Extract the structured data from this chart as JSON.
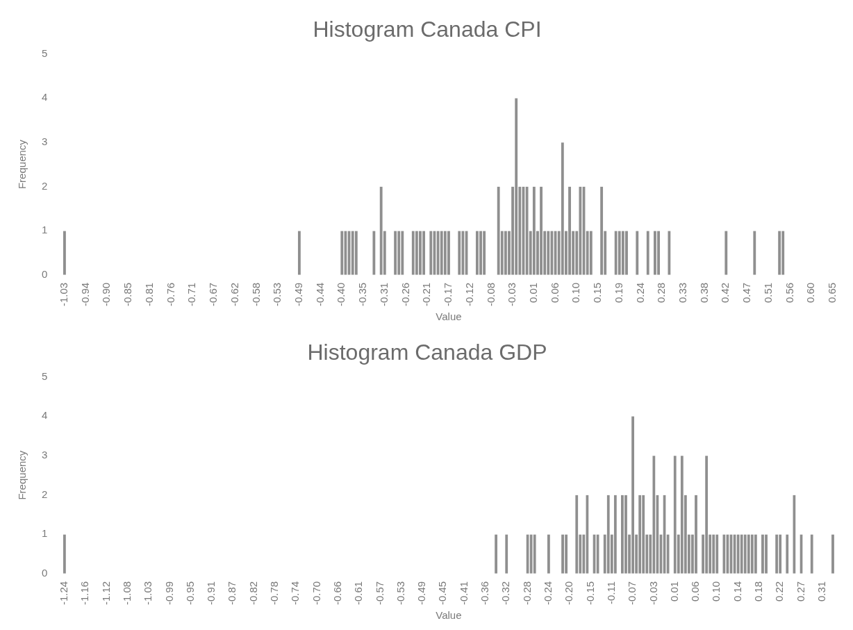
{
  "chart_data": [
    {
      "type": "bar",
      "title": "Histogram Canada CPI",
      "xlabel": "Value",
      "ylabel": "Frequency",
      "color": "#8f8f8f",
      "ylim": [
        0,
        5
      ],
      "yticks": [
        0,
        1,
        2,
        3,
        4,
        5
      ],
      "grid": false,
      "legend": false,
      "categories": [
        "-1.03",
        null,
        null,
        null,
        null,
        null,
        "-0.94",
        null,
        null,
        null,
        null,
        null,
        "-0.90",
        null,
        null,
        null,
        null,
        null,
        "-0.85",
        null,
        null,
        null,
        null,
        null,
        "-0.81",
        null,
        null,
        null,
        null,
        null,
        "-0.76",
        null,
        null,
        null,
        null,
        null,
        "-0.71",
        null,
        null,
        null,
        null,
        null,
        "-0.67",
        null,
        null,
        null,
        null,
        null,
        "-0.62",
        null,
        null,
        null,
        null,
        null,
        "-0.58",
        null,
        null,
        null,
        null,
        null,
        "-0.53",
        null,
        null,
        null,
        null,
        null,
        "-0.49",
        null,
        null,
        null,
        null,
        null,
        "-0.44",
        null,
        null,
        null,
        null,
        null,
        "-0.40",
        null,
        null,
        null,
        null,
        null,
        "-0.35",
        null,
        null,
        null,
        null,
        null,
        "-0.31",
        null,
        null,
        null,
        null,
        null,
        "-0.26",
        null,
        null,
        null,
        null,
        null,
        "-0.21",
        null,
        null,
        null,
        null,
        null,
        "-0.17",
        null,
        null,
        null,
        null,
        null,
        "-0.12",
        null,
        null,
        null,
        null,
        null,
        "-0.08",
        null,
        null,
        null,
        null,
        null,
        "-0.03",
        null,
        null,
        null,
        null,
        null,
        "0.01",
        null,
        null,
        null,
        null,
        null,
        "0.06",
        null,
        null,
        null,
        null,
        null,
        "0.10",
        null,
        null,
        null,
        null,
        null,
        "0.15",
        null,
        null,
        null,
        null,
        null,
        "0.19",
        null,
        null,
        null,
        null,
        null,
        "0.24",
        null,
        null,
        null,
        null,
        null,
        "0.28",
        null,
        null,
        null,
        null,
        null,
        "0.33",
        null,
        null,
        null,
        null,
        null,
        "0.38",
        null,
        null,
        null,
        null,
        null,
        "0.42",
        null,
        null,
        null,
        null,
        null,
        "0.47",
        null,
        null,
        null,
        null,
        null,
        "0.51",
        null,
        null,
        null,
        null,
        null,
        "0.56",
        null,
        null,
        null,
        null,
        null,
        "0.60",
        null,
        null,
        null,
        null,
        null,
        "0.65"
      ],
      "values": [
        1,
        0,
        0,
        0,
        0,
        0,
        0,
        0,
        0,
        0,
        0,
        0,
        0,
        0,
        0,
        0,
        0,
        0,
        0,
        0,
        0,
        0,
        0,
        0,
        0,
        0,
        0,
        0,
        0,
        0,
        0,
        0,
        0,
        0,
        0,
        0,
        0,
        0,
        0,
        0,
        0,
        0,
        0,
        0,
        0,
        0,
        0,
        0,
        0,
        0,
        0,
        0,
        0,
        0,
        0,
        0,
        0,
        0,
        0,
        0,
        0,
        0,
        0,
        0,
        0,
        0,
        1,
        0,
        0,
        0,
        0,
        0,
        0,
        0,
        0,
        0,
        0,
        0,
        1,
        1,
        1,
        1,
        1,
        0,
        0,
        0,
        0,
        1,
        0,
        2,
        1,
        0,
        0,
        1,
        1,
        1,
        0,
        0,
        1,
        1,
        1,
        1,
        0,
        1,
        1,
        1,
        1,
        1,
        1,
        0,
        0,
        1,
        1,
        1,
        0,
        0,
        1,
        1,
        1,
        0,
        0,
        0,
        2,
        1,
        1,
        1,
        2,
        4,
        2,
        2,
        2,
        1,
        2,
        1,
        2,
        1,
        1,
        1,
        1,
        1,
        3,
        1,
        2,
        1,
        1,
        2,
        2,
        1,
        1,
        0,
        0,
        2,
        1,
        0,
        0,
        1,
        1,
        1,
        1,
        0,
        0,
        1,
        0,
        0,
        1,
        0,
        1,
        1,
        0,
        0,
        1,
        0,
        0,
        0,
        0,
        0,
        0,
        0,
        0,
        0,
        0,
        0,
        0,
        0,
        0,
        0,
        1,
        0,
        0,
        0,
        0,
        0,
        0,
        0,
        1,
        0,
        0,
        0,
        0,
        0,
        0,
        1,
        1,
        0,
        0,
        0,
        0,
        0,
        0,
        0,
        0,
        0,
        0,
        0,
        0,
        0,
        0
      ]
    },
    {
      "type": "bar",
      "title": "Histogram Canada GDP",
      "xlabel": "Value",
      "ylabel": "Frequency",
      "color": "#8f8f8f",
      "ylim": [
        0,
        5
      ],
      "yticks": [
        0,
        1,
        2,
        3,
        4,
        5
      ],
      "grid": false,
      "legend": false,
      "categories": [
        "-1.24",
        null,
        null,
        null,
        null,
        null,
        "-1.16",
        null,
        null,
        null,
        null,
        null,
        "-1.12",
        null,
        null,
        null,
        null,
        null,
        "-1.08",
        null,
        null,
        null,
        null,
        null,
        "-1.03",
        null,
        null,
        null,
        null,
        null,
        "-0.99",
        null,
        null,
        null,
        null,
        null,
        "-0.95",
        null,
        null,
        null,
        null,
        null,
        "-0.91",
        null,
        null,
        null,
        null,
        null,
        "-0.87",
        null,
        null,
        null,
        null,
        null,
        "-0.82",
        null,
        null,
        null,
        null,
        null,
        "-0.78",
        null,
        null,
        null,
        null,
        null,
        "-0.74",
        null,
        null,
        null,
        null,
        null,
        "-0.70",
        null,
        null,
        null,
        null,
        null,
        "-0.66",
        null,
        null,
        null,
        null,
        null,
        "-0.61",
        null,
        null,
        null,
        null,
        null,
        "-0.57",
        null,
        null,
        null,
        null,
        null,
        "-0.53",
        null,
        null,
        null,
        null,
        null,
        "-0.49",
        null,
        null,
        null,
        null,
        null,
        "-0.45",
        null,
        null,
        null,
        null,
        null,
        "-0.41",
        null,
        null,
        null,
        null,
        null,
        "-0.36",
        null,
        null,
        null,
        null,
        null,
        "-0.32",
        null,
        null,
        null,
        null,
        null,
        "-0.28",
        null,
        null,
        null,
        null,
        null,
        "-0.24",
        null,
        null,
        null,
        null,
        null,
        "-0.20",
        null,
        null,
        null,
        null,
        null,
        "-0.15",
        null,
        null,
        null,
        null,
        null,
        "-0.11",
        null,
        null,
        null,
        null,
        null,
        "-0.07",
        null,
        null,
        null,
        null,
        null,
        "-0.03",
        null,
        null,
        null,
        null,
        null,
        "0.01",
        null,
        null,
        null,
        null,
        null,
        "0.06",
        null,
        null,
        null,
        null,
        null,
        "0.10",
        null,
        null,
        null,
        null,
        null,
        "0.14",
        null,
        null,
        null,
        null,
        null,
        "0.18",
        null,
        null,
        null,
        null,
        null,
        "0.22",
        null,
        null,
        null,
        null,
        null,
        "0.27",
        null,
        null,
        null,
        null,
        null,
        "0.31",
        null,
        null,
        null
      ],
      "values": [
        1,
        0,
        0,
        0,
        0,
        0,
        0,
        0,
        0,
        0,
        0,
        0,
        0,
        0,
        0,
        0,
        0,
        0,
        0,
        0,
        0,
        0,
        0,
        0,
        0,
        0,
        0,
        0,
        0,
        0,
        0,
        0,
        0,
        0,
        0,
        0,
        0,
        0,
        0,
        0,
        0,
        0,
        0,
        0,
        0,
        0,
        0,
        0,
        0,
        0,
        0,
        0,
        0,
        0,
        0,
        0,
        0,
        0,
        0,
        0,
        0,
        0,
        0,
        0,
        0,
        0,
        0,
        0,
        0,
        0,
        0,
        0,
        0,
        0,
        0,
        0,
        0,
        0,
        0,
        0,
        0,
        0,
        0,
        0,
        0,
        0,
        0,
        0,
        0,
        0,
        0,
        0,
        0,
        0,
        0,
        0,
        0,
        0,
        0,
        0,
        0,
        0,
        0,
        0,
        0,
        0,
        0,
        0,
        0,
        0,
        0,
        0,
        0,
        0,
        0,
        0,
        0,
        0,
        0,
        0,
        0,
        0,
        0,
        1,
        0,
        0,
        1,
        0,
        0,
        0,
        0,
        0,
        1,
        1,
        1,
        0,
        0,
        0,
        1,
        0,
        0,
        0,
        1,
        1,
        0,
        0,
        2,
        1,
        1,
        2,
        0,
        1,
        1,
        0,
        1,
        2,
        1,
        2,
        0,
        2,
        2,
        1,
        4,
        1,
        2,
        2,
        1,
        1,
        3,
        2,
        1,
        2,
        1,
        0,
        3,
        1,
        3,
        2,
        1,
        1,
        2,
        0,
        1,
        3,
        1,
        1,
        1,
        0,
        1,
        1,
        1,
        1,
        1,
        1,
        1,
        1,
        1,
        1,
        0,
        1,
        1,
        0,
        0,
        1,
        1,
        0,
        1,
        0,
        2,
        0,
        1,
        0,
        0,
        1,
        0,
        0,
        0,
        0,
        0,
        1
      ]
    }
  ]
}
